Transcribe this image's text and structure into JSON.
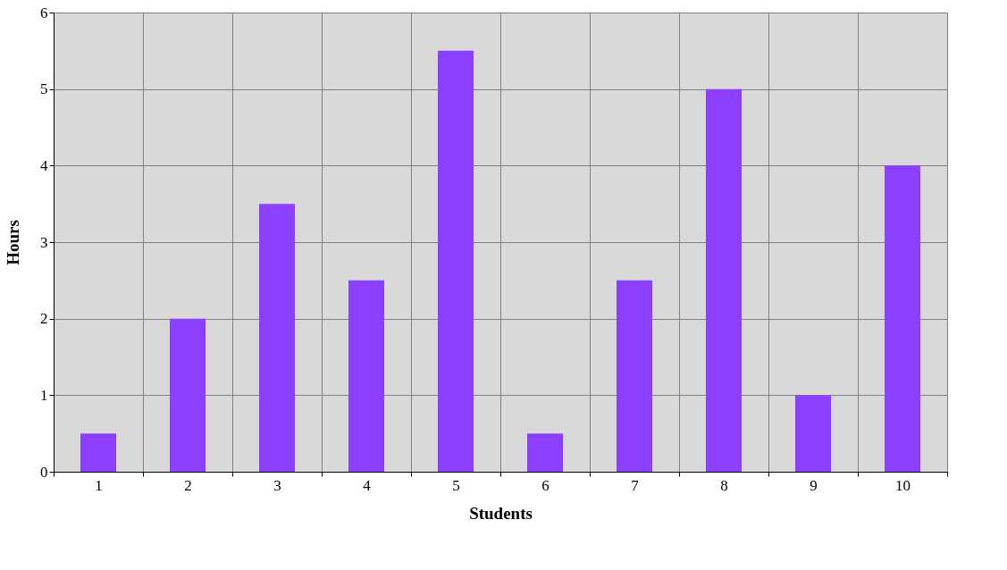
{
  "chart_data": {
    "type": "bar",
    "xlabel": "Students",
    "ylabel": "Hours",
    "categories": [
      "1",
      "2",
      "3",
      "4",
      "5",
      "6",
      "7",
      "8",
      "9",
      "10"
    ],
    "values": [
      0.5,
      2,
      3.5,
      2.5,
      5.5,
      0.5,
      2.5,
      5,
      1,
      4
    ],
    "color": "#8c40ff",
    "ylim": [
      0,
      6
    ],
    "yticks": [
      0,
      1,
      2,
      3,
      4,
      5,
      6
    ],
    "grid": true
  }
}
